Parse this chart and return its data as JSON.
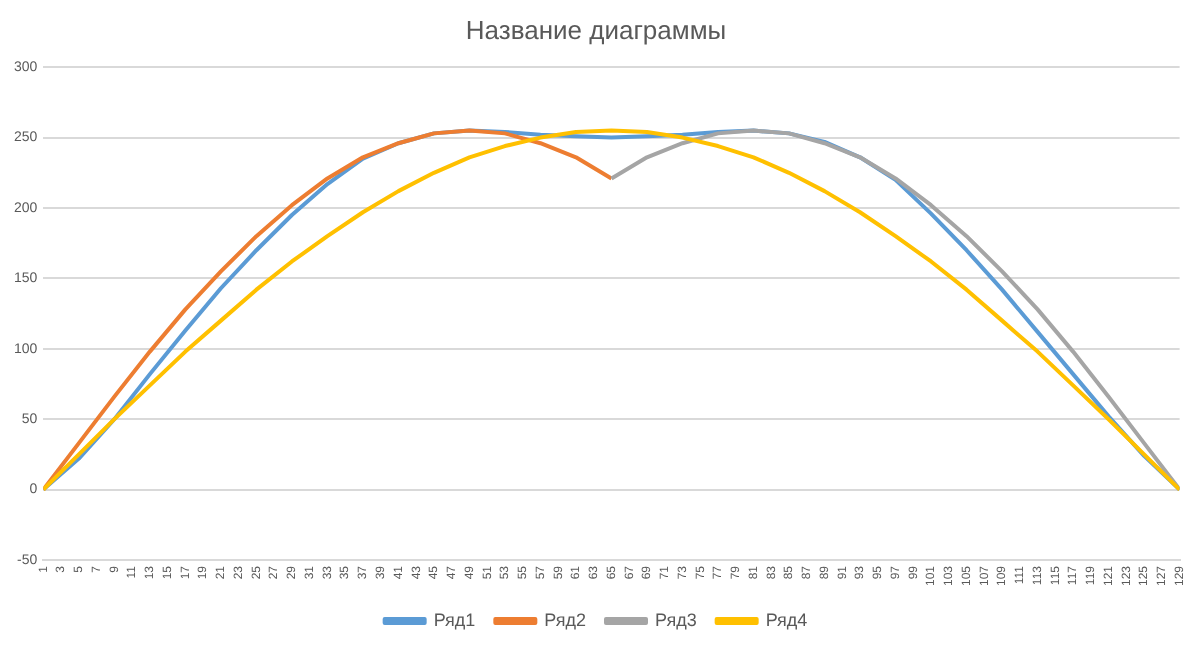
{
  "chart_data": {
    "type": "line",
    "title": "Название диаграммы",
    "xlim": [
      1,
      129
    ],
    "xticks": [
      1,
      3,
      5,
      7,
      9,
      11,
      13,
      15,
      17,
      19,
      21,
      23,
      25,
      27,
      29,
      31,
      33,
      35,
      37,
      39,
      41,
      43,
      45,
      47,
      49,
      51,
      53,
      55,
      57,
      59,
      61,
      63,
      65,
      67,
      69,
      71,
      73,
      75,
      77,
      79,
      81,
      83,
      85,
      87,
      89,
      91,
      93,
      95,
      97,
      99,
      101,
      103,
      105,
      107,
      109,
      111,
      113,
      115,
      117,
      119,
      121,
      123,
      125,
      127,
      129
    ],
    "ylim": [
      -50,
      300
    ],
    "yticks": [
      -50,
      0,
      50,
      100,
      150,
      200,
      250,
      300
    ],
    "grid": "y",
    "legend": "bottom",
    "marker": "none",
    "line_style": "solid",
    "series": [
      {
        "name": "Ряд1",
        "color": "#5b9bd5",
        "x": [
          1,
          5,
          9,
          13,
          17,
          21,
          25,
          29,
          33,
          37,
          41,
          45,
          49,
          53,
          57,
          61,
          65,
          69,
          73,
          77,
          81,
          85,
          89,
          93,
          97,
          101,
          105,
          109,
          113,
          117,
          121,
          125,
          129
        ],
        "values": [
          0,
          22,
          50,
          82,
          113,
          143,
          170,
          195,
          217,
          235,
          246,
          253,
          255,
          254,
          252,
          251,
          250,
          251,
          252,
          254,
          255,
          253,
          247,
          236,
          220,
          196,
          170,
          142,
          112,
          82,
          52,
          24,
          0
        ]
      },
      {
        "name": "Ряд2",
        "color": "#ed7d31",
        "x": [
          1,
          5,
          9,
          13,
          17,
          21,
          25,
          29,
          33,
          37,
          41,
          45,
          49,
          53,
          57,
          61,
          65
        ],
        "values": [
          0,
          33,
          66,
          98,
          128,
          155,
          180,
          202,
          221,
          236,
          246,
          253,
          255,
          253,
          246,
          236,
          221
        ]
      },
      {
        "name": "Ряд3",
        "color": "#a5a5a5",
        "x": [
          65,
          69,
          73,
          77,
          81,
          85,
          89,
          93,
          97,
          101,
          105,
          109,
          113,
          117,
          121,
          125,
          129
        ],
        "values": [
          221,
          236,
          246,
          253,
          255,
          253,
          246,
          236,
          221,
          202,
          180,
          155,
          128,
          98,
          66,
          33,
          0
        ]
      },
      {
        "name": "Ряд4",
        "color": "#ffc000",
        "x": [
          1,
          5,
          9,
          13,
          17,
          21,
          25,
          29,
          33,
          37,
          41,
          45,
          49,
          53,
          57,
          61,
          65,
          69,
          73,
          77,
          81,
          85,
          89,
          93,
          97,
          101,
          105,
          109,
          113,
          117,
          121,
          125,
          129
        ],
        "values": [
          0,
          25,
          50,
          74,
          98,
          120,
          142,
          162,
          180,
          197,
          212,
          225,
          236,
          244,
          250,
          254,
          255,
          254,
          250,
          244,
          236,
          225,
          212,
          197,
          180,
          162,
          142,
          120,
          98,
          74,
          50,
          25,
          0
        ]
      }
    ]
  }
}
